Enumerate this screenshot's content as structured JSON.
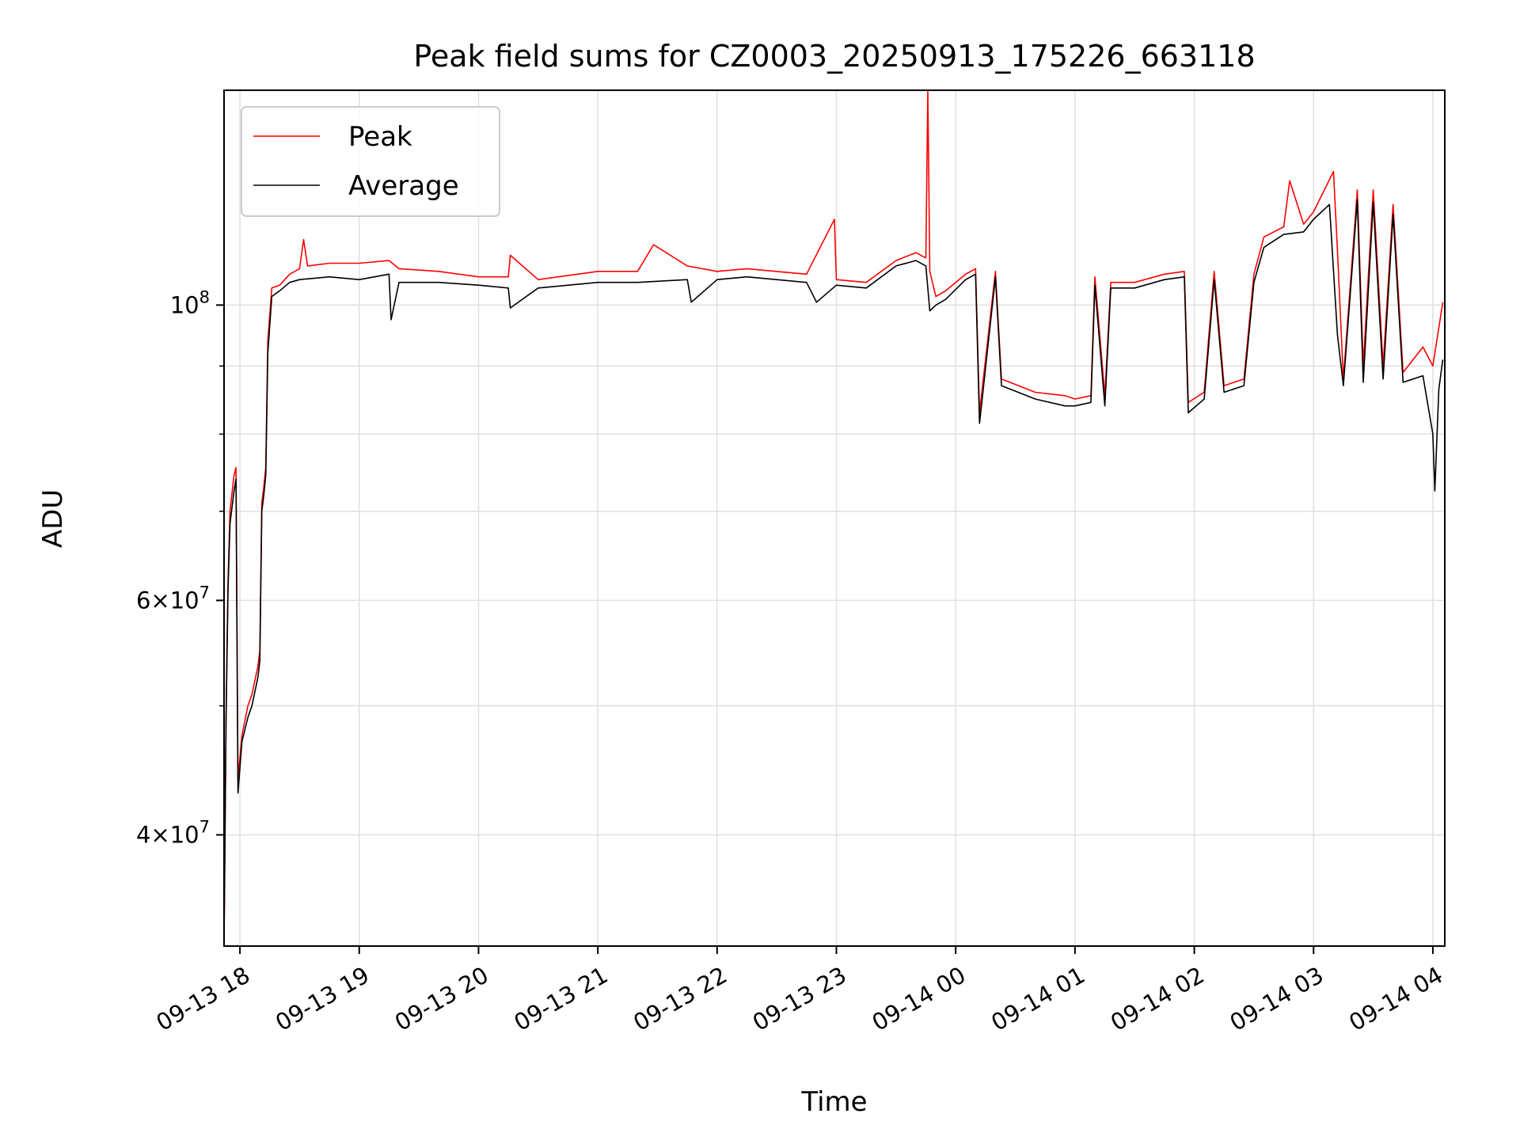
{
  "chart_data": {
    "type": "line",
    "title": "Peak field sums for CZ0003_20250913_175226_663118",
    "xlabel": "Time",
    "ylabel": "ADU",
    "yscale": "log",
    "xlim": [
      "2025-09-13 17:52",
      "2025-09-14 04:06"
    ],
    "ylim": [
      33000000,
      145000000
    ],
    "grid": true,
    "legend_position": "top-left",
    "x_ticks": [
      {
        "value": "2025-09-13 18:00",
        "label": "09-13 18"
      },
      {
        "value": "2025-09-13 19:00",
        "label": "09-13 19"
      },
      {
        "value": "2025-09-13 20:00",
        "label": "09-13 20"
      },
      {
        "value": "2025-09-13 21:00",
        "label": "09-13 21"
      },
      {
        "value": "2025-09-13 22:00",
        "label": "09-13 22"
      },
      {
        "value": "2025-09-13 23:00",
        "label": "09-13 23"
      },
      {
        "value": "2025-09-14 00:00",
        "label": "09-14 00"
      },
      {
        "value": "2025-09-14 01:00",
        "label": "09-14 01"
      },
      {
        "value": "2025-09-14 02:00",
        "label": "09-14 02"
      },
      {
        "value": "2025-09-14 03:00",
        "label": "09-14 03"
      },
      {
        "value": "2025-09-14 04:00",
        "label": "09-14 04"
      }
    ],
    "y_major_ticks": [
      {
        "value": 40000000,
        "mantissa": "4",
        "base": "10",
        "exp": "7"
      },
      {
        "value": 60000000,
        "mantissa": "6",
        "base": "10",
        "exp": "7"
      },
      {
        "value": 100000000,
        "mantissa": "",
        "base": "10",
        "exp": "8"
      }
    ],
    "y_minor_gridlines": [
      50000000,
      70000000,
      80000000,
      90000000
    ],
    "series": [
      {
        "name": "Peak",
        "color": "#ff0000",
        "points": [
          [
            "2025-09-13 17:52",
            33500000
          ],
          [
            "2025-09-13 17:53",
            49000000
          ],
          [
            "2025-09-13 17:54",
            62000000
          ],
          [
            "2025-09-13 17:55",
            70000000
          ],
          [
            "2025-09-13 17:57",
            74500000
          ],
          [
            "2025-09-13 17:58",
            75500000
          ],
          [
            "2025-09-13 17:59",
            44000000
          ],
          [
            "2025-09-13 18:01",
            47500000
          ],
          [
            "2025-09-13 18:04",
            50000000
          ],
          [
            "2025-09-13 18:06",
            51000000
          ],
          [
            "2025-09-13 18:09",
            53500000
          ],
          [
            "2025-09-13 18:10",
            55000000
          ],
          [
            "2025-09-13 18:11",
            71000000
          ],
          [
            "2025-09-13 18:12",
            73000000
          ],
          [
            "2025-09-13 18:13",
            75500000
          ],
          [
            "2025-09-13 18:14",
            94000000
          ],
          [
            "2025-09-13 18:16",
            103000000
          ],
          [
            "2025-09-13 18:20",
            103500000
          ],
          [
            "2025-09-13 18:25",
            105500000
          ],
          [
            "2025-09-13 18:30",
            106500000
          ],
          [
            "2025-09-13 18:32",
            112000000
          ],
          [
            "2025-09-13 18:34",
            107000000
          ],
          [
            "2025-09-13 18:45",
            107500000
          ],
          [
            "2025-09-13 19:00",
            107500000
          ],
          [
            "2025-09-13 19:15",
            108000000
          ],
          [
            "2025-09-13 19:20",
            106500000
          ],
          [
            "2025-09-13 19:40",
            106000000
          ],
          [
            "2025-09-13 20:00",
            105000000
          ],
          [
            "2025-09-13 20:15",
            105000000
          ],
          [
            "2025-09-13 20:16",
            109000000
          ],
          [
            "2025-09-13 20:30",
            104500000
          ],
          [
            "2025-09-13 21:00",
            106000000
          ],
          [
            "2025-09-13 21:20",
            106000000
          ],
          [
            "2025-09-13 21:28",
            111000000
          ],
          [
            "2025-09-13 21:45",
            107000000
          ],
          [
            "2025-09-13 22:00",
            106000000
          ],
          [
            "2025-09-13 22:15",
            106500000
          ],
          [
            "2025-09-13 22:45",
            105500000
          ],
          [
            "2025-09-13 22:59",
            116000000
          ],
          [
            "2025-09-13 23:00",
            104500000
          ],
          [
            "2025-09-13 23:15",
            104000000
          ],
          [
            "2025-09-13 23:30",
            108000000
          ],
          [
            "2025-09-13 23:40",
            109500000
          ],
          [
            "2025-09-13 23:45",
            108500000
          ],
          [
            "2025-09-13 23:46",
            145000000
          ],
          [
            "2025-09-13 23:47",
            106000000
          ],
          [
            "2025-09-13 23:50",
            101500000
          ],
          [
            "2025-09-13 23:55",
            102500000
          ],
          [
            "2025-09-14 00:05",
            105500000
          ],
          [
            "2025-09-14 00:10",
            106500000
          ],
          [
            "2025-09-14 00:12",
            83000000
          ],
          [
            "2025-09-14 00:20",
            106000000
          ],
          [
            "2025-09-14 00:23",
            88000000
          ],
          [
            "2025-09-14 00:40",
            86000000
          ],
          [
            "2025-09-14 00:55",
            85500000
          ],
          [
            "2025-09-14 01:00",
            85000000
          ],
          [
            "2025-09-14 01:08",
            85500000
          ],
          [
            "2025-09-14 01:10",
            105000000
          ],
          [
            "2025-09-14 01:15",
            85500000
          ],
          [
            "2025-09-14 01:18",
            104000000
          ],
          [
            "2025-09-14 01:30",
            104000000
          ],
          [
            "2025-09-14 01:45",
            105500000
          ],
          [
            "2025-09-14 01:55",
            106000000
          ],
          [
            "2025-09-14 01:57",
            84500000
          ],
          [
            "2025-09-14 02:05",
            86000000
          ],
          [
            "2025-09-14 02:10",
            106000000
          ],
          [
            "2025-09-14 02:15",
            87000000
          ],
          [
            "2025-09-14 02:25",
            88000000
          ],
          [
            "2025-09-14 02:30",
            105500000
          ],
          [
            "2025-09-14 02:35",
            112500000
          ],
          [
            "2025-09-14 02:45",
            114500000
          ],
          [
            "2025-09-14 02:48",
            124000000
          ],
          [
            "2025-09-14 02:55",
            115000000
          ],
          [
            "2025-09-14 03:00",
            117500000
          ],
          [
            "2025-09-14 03:10",
            126000000
          ],
          [
            "2025-09-14 03:12",
            110000000
          ],
          [
            "2025-09-14 03:15",
            88000000
          ],
          [
            "2025-09-14 03:22",
            122000000
          ],
          [
            "2025-09-14 03:25",
            90000000
          ],
          [
            "2025-09-14 03:30",
            122000000
          ],
          [
            "2025-09-14 03:35",
            90000000
          ],
          [
            "2025-09-14 03:40",
            119000000
          ],
          [
            "2025-09-14 03:45",
            89000000
          ],
          [
            "2025-09-14 03:55",
            93000000
          ],
          [
            "2025-09-14 04:00",
            90000000
          ],
          [
            "2025-09-14 04:05",
            100500000
          ]
        ]
      },
      {
        "name": "Average",
        "color": "#000000",
        "points": [
          [
            "2025-09-13 17:52",
            33000000
          ],
          [
            "2025-09-13 17:53",
            48500000
          ],
          [
            "2025-09-13 17:54",
            61000000
          ],
          [
            "2025-09-13 17:55",
            68500000
          ],
          [
            "2025-09-13 17:57",
            72500000
          ],
          [
            "2025-09-13 17:58",
            74000000
          ],
          [
            "2025-09-13 17:59",
            43000000
          ],
          [
            "2025-09-13 18:01",
            47000000
          ],
          [
            "2025-09-13 18:04",
            49000000
          ],
          [
            "2025-09-13 18:06",
            50000000
          ],
          [
            "2025-09-13 18:09",
            52500000
          ],
          [
            "2025-09-13 18:10",
            54000000
          ],
          [
            "2025-09-13 18:11",
            70000000
          ],
          [
            "2025-09-13 18:12",
            72000000
          ],
          [
            "2025-09-13 18:13",
            74500000
          ],
          [
            "2025-09-13 18:14",
            92000000
          ],
          [
            "2025-09-13 18:16",
            101500000
          ],
          [
            "2025-09-13 18:20",
            102500000
          ],
          [
            "2025-09-13 18:25",
            104000000
          ],
          [
            "2025-09-13 18:30",
            104500000
          ],
          [
            "2025-09-13 18:45",
            105000000
          ],
          [
            "2025-09-13 19:00",
            104500000
          ],
          [
            "2025-09-13 19:15",
            105500000
          ],
          [
            "2025-09-13 19:16",
            97500000
          ],
          [
            "2025-09-13 19:20",
            104000000
          ],
          [
            "2025-09-13 19:40",
            104000000
          ],
          [
            "2025-09-13 20:00",
            103500000
          ],
          [
            "2025-09-13 20:15",
            103000000
          ],
          [
            "2025-09-13 20:16",
            99500000
          ],
          [
            "2025-09-13 20:30",
            103000000
          ],
          [
            "2025-09-13 21:00",
            104000000
          ],
          [
            "2025-09-13 21:20",
            104000000
          ],
          [
            "2025-09-13 21:45",
            104500000
          ],
          [
            "2025-09-13 21:47",
            100500000
          ],
          [
            "2025-09-13 22:00",
            104500000
          ],
          [
            "2025-09-13 22:15",
            105000000
          ],
          [
            "2025-09-13 22:45",
            104000000
          ],
          [
            "2025-09-13 22:50",
            100500000
          ],
          [
            "2025-09-13 23:00",
            103500000
          ],
          [
            "2025-09-13 23:15",
            103000000
          ],
          [
            "2025-09-13 23:30",
            107000000
          ],
          [
            "2025-09-13 23:40",
            108000000
          ],
          [
            "2025-09-13 23:45",
            107000000
          ],
          [
            "2025-09-13 23:47",
            99000000
          ],
          [
            "2025-09-13 23:50",
            100000000
          ],
          [
            "2025-09-13 23:55",
            101000000
          ],
          [
            "2025-09-14 00:05",
            104500000
          ],
          [
            "2025-09-14 00:10",
            105500000
          ],
          [
            "2025-09-14 00:12",
            81500000
          ],
          [
            "2025-09-14 00:20",
            105000000
          ],
          [
            "2025-09-14 00:23",
            87000000
          ],
          [
            "2025-09-14 00:40",
            85000000
          ],
          [
            "2025-09-14 00:55",
            84000000
          ],
          [
            "2025-09-14 01:00",
            84000000
          ],
          [
            "2025-09-14 01:08",
            84500000
          ],
          [
            "2025-09-14 01:10",
            103500000
          ],
          [
            "2025-09-14 01:15",
            84000000
          ],
          [
            "2025-09-14 01:18",
            103000000
          ],
          [
            "2025-09-14 01:30",
            103000000
          ],
          [
            "2025-09-14 01:45",
            104500000
          ],
          [
            "2025-09-14 01:55",
            105000000
          ],
          [
            "2025-09-14 01:57",
            83000000
          ],
          [
            "2025-09-14 02:05",
            85000000
          ],
          [
            "2025-09-14 02:10",
            104500000
          ],
          [
            "2025-09-14 02:15",
            86000000
          ],
          [
            "2025-09-14 02:25",
            87000000
          ],
          [
            "2025-09-14 02:30",
            104000000
          ],
          [
            "2025-09-14 02:35",
            110500000
          ],
          [
            "2025-09-14 02:45",
            113000000
          ],
          [
            "2025-09-14 02:55",
            113500000
          ],
          [
            "2025-09-14 03:00",
            116000000
          ],
          [
            "2025-09-14 03:08",
            119000000
          ],
          [
            "2025-09-14 03:12",
            95000000
          ],
          [
            "2025-09-14 03:15",
            87000000
          ],
          [
            "2025-09-14 03:22",
            120000000
          ],
          [
            "2025-09-14 03:25",
            87500000
          ],
          [
            "2025-09-14 03:30",
            119500000
          ],
          [
            "2025-09-14 03:35",
            88000000
          ],
          [
            "2025-09-14 03:40",
            117000000
          ],
          [
            "2025-09-14 03:45",
            87500000
          ],
          [
            "2025-09-14 03:55",
            88500000
          ],
          [
            "2025-09-14 04:00",
            80000000
          ],
          [
            "2025-09-14 04:01",
            72500000
          ],
          [
            "2025-09-14 04:03",
            86500000
          ],
          [
            "2025-09-14 04:05",
            91000000
          ]
        ]
      }
    ]
  }
}
